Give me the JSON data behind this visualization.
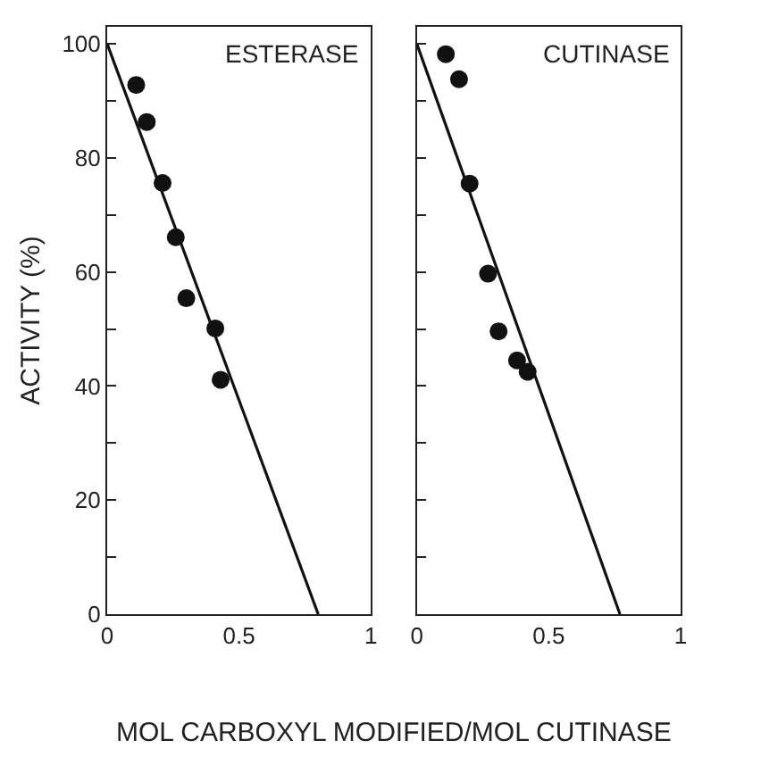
{
  "chart_data": [
    {
      "type": "scatter",
      "title": "ESTERASE",
      "ylabel": "ACTIVITY (%)",
      "xlabel": "MOL CARBOXYL MODIFIED/MOL CUTINASE",
      "marker": "circle",
      "series": [
        {
          "type": "scatter",
          "color": "#111111",
          "x": [
            0.11,
            0.15,
            0.21,
            0.26,
            0.3,
            0.41,
            0.43
          ],
          "values": [
            92.8,
            86.3,
            75.6,
            66.1,
            55.4,
            50.1,
            41.1
          ]
        },
        {
          "type": "line",
          "marker": "none",
          "color": "#111111",
          "x": [
            0,
            0.8
          ],
          "values": [
            100,
            0
          ]
        }
      ],
      "xlim": [
        0,
        1
      ],
      "ylim": [
        0,
        103
      ],
      "xticks": [
        0,
        0.5,
        1
      ],
      "yticks": [
        0,
        {
          "value": 10,
          "label": null
        },
        20,
        {
          "value": 30,
          "label": null
        },
        40,
        {
          "value": 50,
          "label": null
        },
        60,
        {
          "value": 70,
          "label": null
        },
        80,
        {
          "value": 90,
          "label": null
        },
        100
      ]
    },
    {
      "type": "scatter",
      "title": "CUTINASE",
      "marker": "circle",
      "tick_labels": "x",
      "series": [
        {
          "type": "scatter",
          "color": "#111111",
          "x": [
            0.11,
            0.16,
            0.2,
            0.27,
            0.31,
            0.38,
            0.42
          ],
          "values": [
            98.2,
            93.8,
            75.5,
            59.7,
            49.6,
            44.5,
            42.5
          ]
        },
        {
          "type": "line",
          "marker": "none",
          "color": "#111111",
          "x": [
            0,
            0.77
          ],
          "values": [
            100,
            0
          ]
        }
      ],
      "xlim": [
        0,
        1
      ],
      "ylim": [
        0,
        103
      ],
      "xticks": [
        0,
        0.5,
        1
      ],
      "yticks": [
        0,
        {
          "value": 10,
          "label": null
        },
        20,
        {
          "value": 30,
          "label": null
        },
        40,
        {
          "value": 50,
          "label": null
        },
        60,
        {
          "value": 70,
          "label": null
        },
        80,
        {
          "value": 90,
          "label": null
        },
        100
      ]
    }
  ]
}
